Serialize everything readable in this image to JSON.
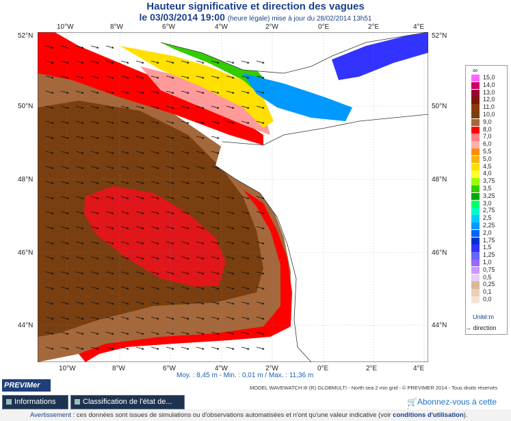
{
  "title": "Hauteur significative et direction des vagues",
  "subtitle_date": "le 03/03/2014 19:00",
  "subtitle_note": "(heure légale) mise à jour du 28/02/2014 13h51",
  "lon_ticks": [
    "10°W",
    "8°W",
    "6°W",
    "4°W",
    "2°W",
    "0°E",
    "2°E",
    "4°E"
  ],
  "lat_ticks": [
    "52°N",
    "50°N",
    "48°N",
    "46°N",
    "44°N"
  ],
  "legend": {
    "top_symbol": "∞",
    "levels": [
      "15,0",
      "14,0",
      "13,0",
      "12,0",
      "11,0",
      "10,0",
      "9,0",
      "8,0",
      "7,0",
      "6,0",
      "5,5",
      "5,0",
      "4,5",
      "4,0",
      "3,75",
      "3,5",
      "3,25",
      "3,0",
      "2,75",
      "2,5",
      "2,25",
      "2,0",
      "1,75",
      "1,5",
      "1,25",
      "1,0",
      "0,75",
      "0,5",
      "0,25",
      "0,1",
      "0,0"
    ],
    "colors": [
      "#ff66ff",
      "#cc0066",
      "#990033",
      "#7a1a00",
      "#8b3a0a",
      "#7a3f10",
      "#a5683c",
      "#ff0000",
      "#ff8080",
      "#ffb0b0",
      "#ff8c00",
      "#ffb000",
      "#ffe000",
      "#ffff33",
      "#99ff00",
      "#33cc00",
      "#00aa00",
      "#00ff66",
      "#00ffcc",
      "#00ccff",
      "#0099ff",
      "#0066ff",
      "#0033cc",
      "#3333ff",
      "#6666ff",
      "#9966ff",
      "#cc99ff",
      "#e6ccff",
      "#d8b89a",
      "#e8d0b8",
      "#f4e4d4"
    ],
    "unit": "Unité:m",
    "direction_label": "→ direction"
  },
  "stats": "Moy. : 8,45 m   -   Min. : 0,01 m / Max. : 11,36 m",
  "model_credit": "MODEL WAVEWATCH III (R) GLOBMULTI - North sea 2 min grid - © PREVIMER 2014 - Tous droits réservés",
  "logo_text": "PREVIMer",
  "tabs": [
    "Informations",
    "Classification de l'état de..."
  ],
  "subscribe": "Abonnez-vous à cette image",
  "warning_label": "Avertissement",
  "warning_text": " : ces données sont issues de simulations ou d'observations automatisées et n'ont qu'une valeur indicative (voir ",
  "warning_link": "conditions d'utilisation",
  "warning_end": ")."
}
